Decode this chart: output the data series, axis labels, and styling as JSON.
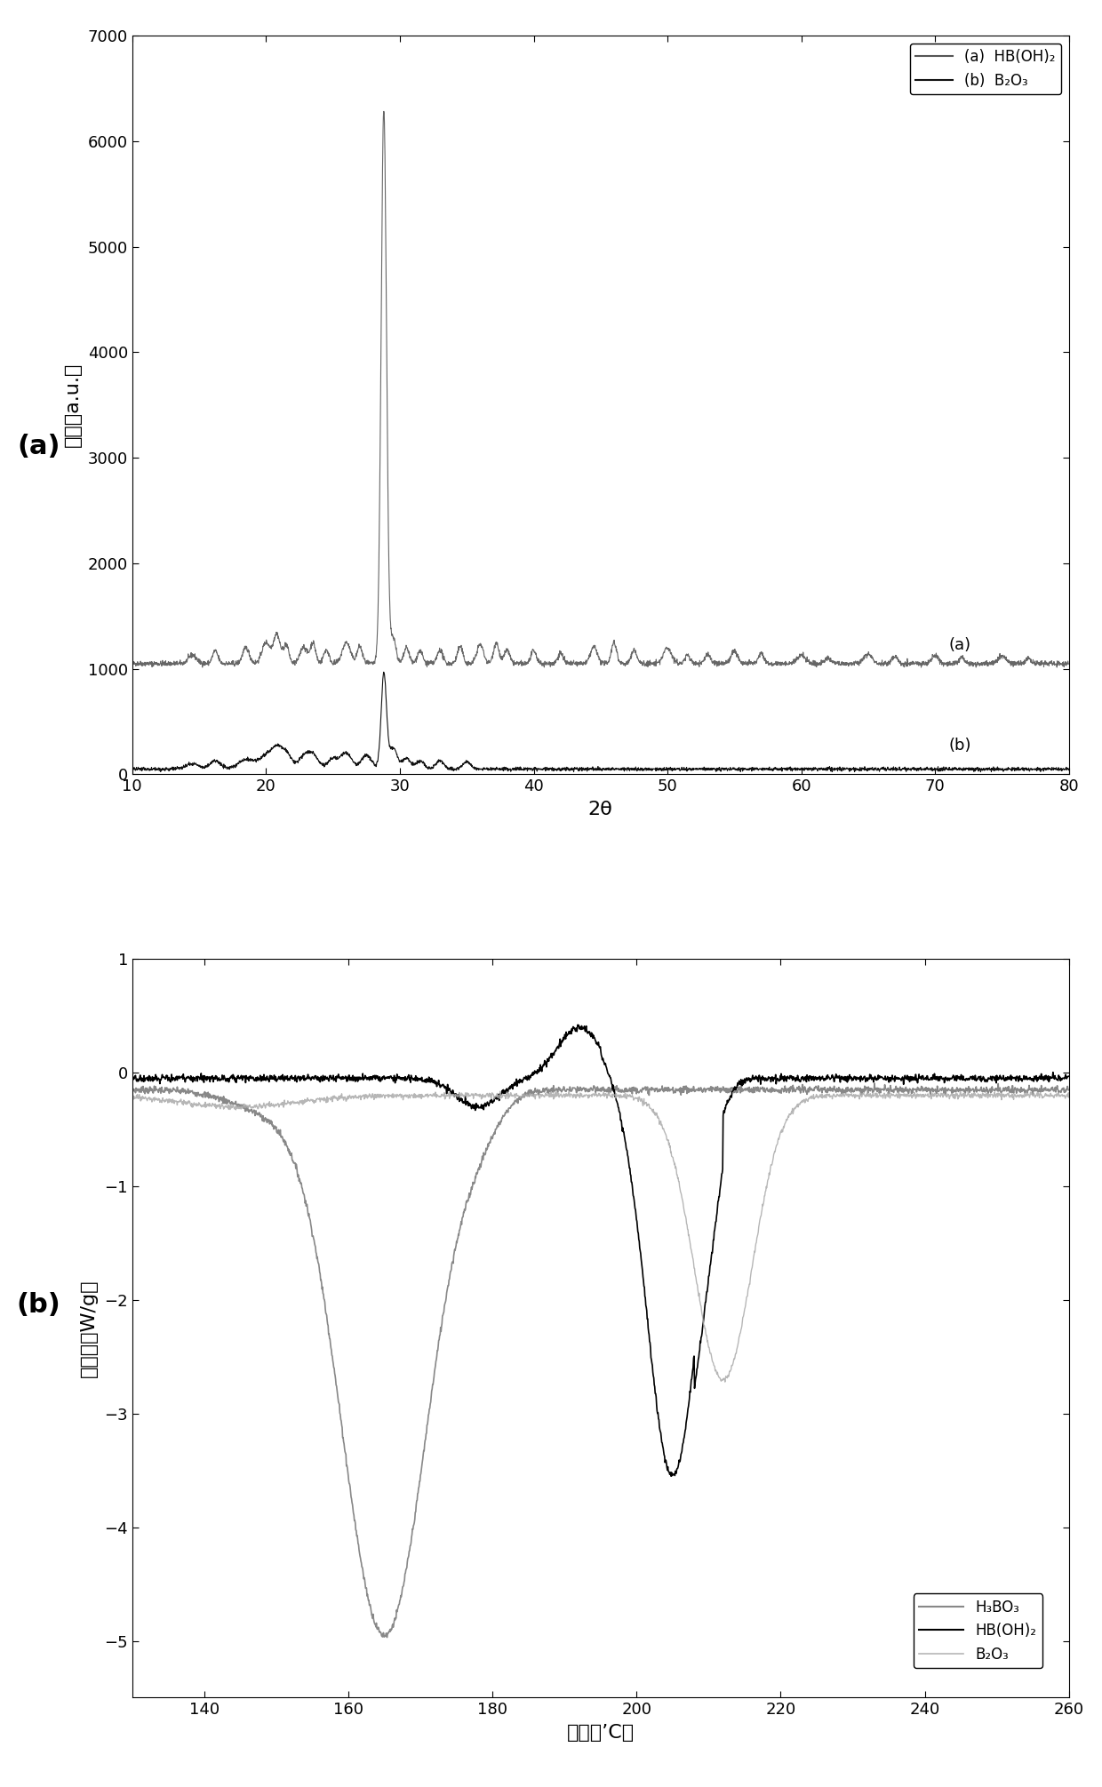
{
  "fig_width": 12.4,
  "fig_height": 20.11,
  "panel_a": {
    "xlabel": "2θ",
    "ylabel": "强度（a.u.）",
    "xlim": [
      10,
      80
    ],
    "ylim": [
      0,
      7000
    ],
    "yticks": [
      0,
      1000,
      2000,
      3000,
      4000,
      5000,
      6000,
      7000
    ],
    "xticks": [
      10,
      20,
      30,
      40,
      50,
      60,
      70,
      80
    ],
    "label_a": "(a)",
    "label_b": "(b)",
    "legend_a": "(a)  HB(OH)₂",
    "legend_b": "(b)  B₂O₃",
    "color_a": "#555555",
    "color_b": "#111111"
  },
  "panel_b": {
    "xlabel": "温度（’C）",
    "ylabel": "热流量（W/g）",
    "xlim": [
      130,
      260
    ],
    "ylim": [
      -5.5,
      1.0
    ],
    "yticks": [
      -5,
      -4,
      -3,
      -2,
      -1,
      0,
      1
    ],
    "xticks": [
      140,
      160,
      180,
      200,
      220,
      240,
      260
    ],
    "legend_h3bo3": "H₃BO₃",
    "legend_hboh2": "HB(OH)₂",
    "legend_b2o3": "B₂O₃",
    "color_h3bo3": "#888888",
    "color_hboh2": "#000000",
    "color_b2o3": "#aaaaaa"
  }
}
